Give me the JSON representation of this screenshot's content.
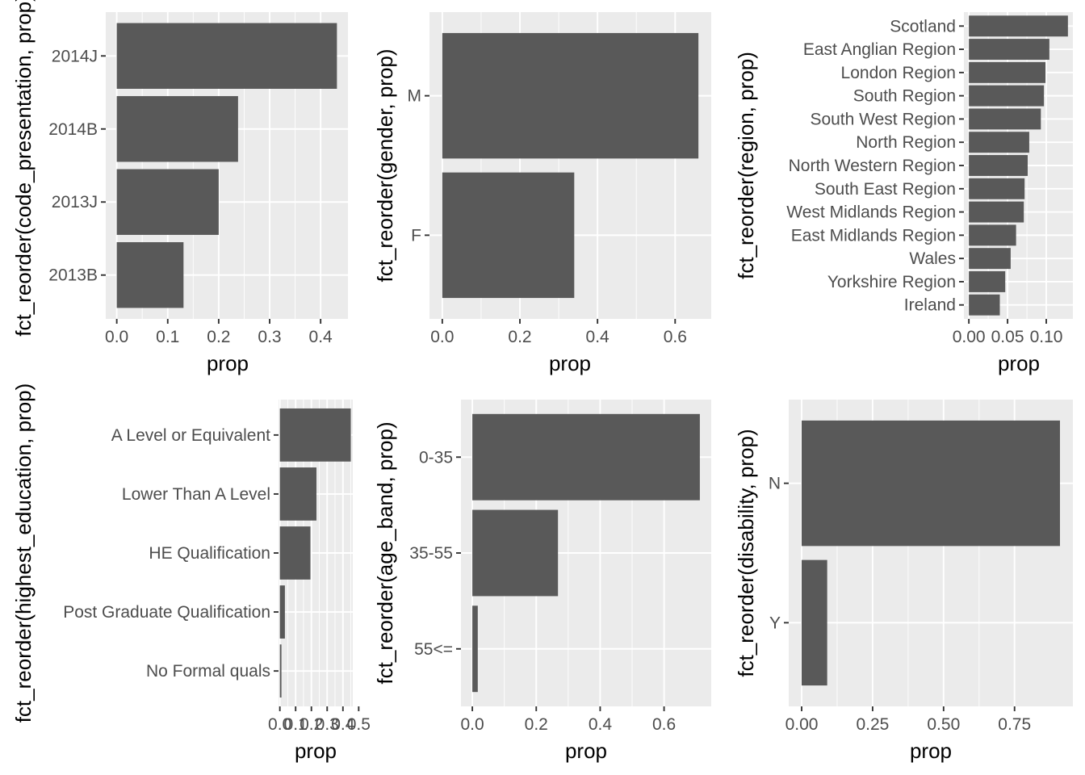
{
  "chart_data": [
    {
      "type": "bar",
      "orientation": "horizontal",
      "categories": [
        "2014J",
        "2014B",
        "2013J",
        "2013B"
      ],
      "values": [
        0.432,
        0.238,
        0.2,
        0.131
      ],
      "xticks": [
        "0.0",
        "0.1",
        "0.2",
        "0.3",
        "0.4"
      ],
      "xtick_values": [
        0,
        0.1,
        0.2,
        0.3,
        0.4
      ],
      "xlim": [
        -0.0216,
        0.4536
      ],
      "xlabel": "prop",
      "ylabel": "fct_reorder(code_presentation, prop)",
      "grid": true,
      "bar_color": "#595959",
      "panel_color": "#ebebeb"
    },
    {
      "type": "bar",
      "orientation": "horizontal",
      "categories": [
        "M",
        "F"
      ],
      "values": [
        0.66,
        0.34
      ],
      "xticks": [
        "0.0",
        "0.2",
        "0.4",
        "0.6"
      ],
      "xtick_values": [
        0,
        0.2,
        0.4,
        0.6
      ],
      "xlim": [
        -0.033,
        0.693
      ],
      "xlabel": "prop",
      "ylabel": "fct_reorder(gender, prop)",
      "grid": true,
      "bar_color": "#595959",
      "panel_color": "#ebebeb"
    },
    {
      "type": "bar",
      "orientation": "horizontal",
      "categories": [
        "Scotland",
        "East Anglian Region",
        "London Region",
        "South Region",
        "South West Region",
        "North Region",
        "North Western Region",
        "South East Region",
        "West Midlands Region",
        "East Midlands Region",
        "Wales",
        "Yorkshire Region",
        "Ireland"
      ],
      "values": [
        0.128,
        0.104,
        0.099,
        0.097,
        0.093,
        0.078,
        0.076,
        0.072,
        0.071,
        0.061,
        0.054,
        0.047,
        0.04
      ],
      "xticks": [
        "0.00",
        "0.05",
        "0.10"
      ],
      "xtick_values": [
        0,
        0.05,
        0.1
      ],
      "xlim": [
        -0.0064,
        0.1344
      ],
      "xlabel": "prop",
      "ylabel": "fct_reorder(region, prop)",
      "grid": true,
      "bar_color": "#595959",
      "panel_color": "#ebebeb"
    },
    {
      "type": "bar",
      "orientation": "horizontal",
      "categories": [
        "A Level or Equivalent",
        "Lower Than A Level",
        "HE Qualification",
        "Post Graduate Qualification",
        "No Formal quals"
      ],
      "values": [
        0.45,
        0.232,
        0.194,
        0.032,
        0.01
      ],
      "xticks": [
        "0.0",
        "0.1",
        "0.2",
        "0.3",
        "0.4",
        "0.5"
      ],
      "xtick_values": [
        0,
        0.1,
        0.2,
        0.3,
        0.4,
        0.5
      ],
      "xlim": [
        -0.0085,
        0.4625
      ],
      "xlabel": "prop",
      "ylabel": "fct_reorder(highest_education, prop)",
      "grid": true,
      "bar_color": "#595959",
      "panel_color": "#ebebeb"
    },
    {
      "type": "bar",
      "orientation": "horizontal",
      "categories": [
        "0-35",
        "35-55",
        "55<="
      ],
      "values": [
        0.712,
        0.268,
        0.017
      ],
      "xticks": [
        "0.0",
        "0.2",
        "0.4",
        "0.6"
      ],
      "xtick_values": [
        0,
        0.2,
        0.4,
        0.6
      ],
      "xlim": [
        -0.0356,
        0.7476
      ],
      "xlabel": "prop",
      "ylabel": "fct_reorder(age_band, prop)",
      "grid": true,
      "bar_color": "#595959",
      "panel_color": "#ebebeb"
    },
    {
      "type": "bar",
      "orientation": "horizontal",
      "categories": [
        "N",
        "Y"
      ],
      "values": [
        0.91,
        0.09
      ],
      "xticks": [
        "0.00",
        "0.25",
        "0.50",
        "0.75"
      ],
      "xtick_values": [
        0,
        0.25,
        0.5,
        0.75
      ],
      "xlim": [
        -0.0455,
        0.9555
      ],
      "xlabel": "prop",
      "ylabel": "fct_reorder(disability, prop)",
      "grid": true,
      "bar_color": "#595959",
      "panel_color": "#ebebeb"
    }
  ]
}
